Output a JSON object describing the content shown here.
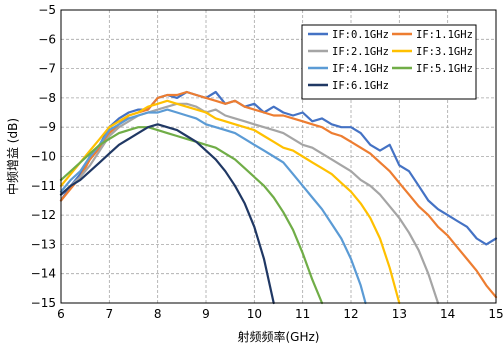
{
  "chart_data": {
    "type": "line",
    "xlabel": "射频频率(GHz)",
    "ylabel": "中频增益 (dB)",
    "xlim": [
      6,
      15
    ],
    "ylim": [
      -15,
      -5
    ],
    "xticks": [
      "6",
      "7",
      "8",
      "9",
      "10",
      "11",
      "12",
      "13",
      "14",
      "15"
    ],
    "yticks": [
      "-5",
      "-6",
      "-7",
      "-8",
      "-9",
      "-10",
      "-11",
      "-12",
      "-13",
      "-14",
      "-15"
    ],
    "grid": true,
    "legend_position": "top-right",
    "series": [
      {
        "name": "IF:0.1GHz",
        "color": "#4472C4",
        "x": [
          6,
          6.2,
          6.4,
          6.6,
          6.8,
          7,
          7.2,
          7.4,
          7.6,
          7.8,
          8,
          8.2,
          8.4,
          8.6,
          8.8,
          9,
          9.2,
          9.4,
          9.6,
          9.8,
          10,
          10.2,
          10.4,
          10.6,
          10.8,
          11,
          11.2,
          11.4,
          11.6,
          11.8,
          12,
          12.2,
          12.4,
          12.6,
          12.8,
          13,
          13.2,
          13.4,
          13.6,
          13.8,
          14,
          14.2,
          14.4,
          14.6,
          14.8,
          15
        ],
        "y": [
          -11.5,
          -11,
          -10.6,
          -10,
          -9.6,
          -9,
          -8.7,
          -8.5,
          -8.4,
          -8.4,
          -8,
          -7.9,
          -8,
          -7.8,
          -7.9,
          -8,
          -7.8,
          -8.2,
          -8.1,
          -8.3,
          -8.2,
          -8.5,
          -8.3,
          -8.5,
          -8.6,
          -8.5,
          -8.8,
          -8.7,
          -8.9,
          -9,
          -9,
          -9.2,
          -9.6,
          -9.8,
          -9.6,
          -10.3,
          -10.5,
          -11,
          -11.5,
          -11.8,
          -12,
          -12.2,
          -12.4,
          -12.8,
          -13,
          -12.8
        ]
      },
      {
        "name": "IF:1.1GHz",
        "color": "#ED7D31",
        "x": [
          6,
          6.2,
          6.4,
          6.6,
          6.8,
          7,
          7.2,
          7.4,
          7.6,
          7.8,
          8,
          8.2,
          8.4,
          8.6,
          8.8,
          9,
          9.2,
          9.4,
          9.6,
          9.8,
          10,
          10.2,
          10.4,
          10.6,
          10.8,
          11,
          11.2,
          11.4,
          11.6,
          11.8,
          12,
          12.2,
          12.4,
          12.6,
          12.8,
          13,
          13.2,
          13.4,
          13.6,
          13.8,
          14,
          14.2,
          14.4,
          14.6,
          14.8,
          15
        ],
        "y": [
          -11.5,
          -11.1,
          -10.7,
          -10.1,
          -9.7,
          -9.2,
          -8.9,
          -8.6,
          -8.5,
          -8.4,
          -8,
          -7.9,
          -7.9,
          -7.8,
          -7.9,
          -8,
          -8.1,
          -8.2,
          -8.1,
          -8.3,
          -8.4,
          -8.5,
          -8.6,
          -8.6,
          -8.7,
          -8.8,
          -8.9,
          -9,
          -9.2,
          -9.3,
          -9.5,
          -9.7,
          -9.9,
          -10.2,
          -10.5,
          -10.9,
          -11.3,
          -11.7,
          -12,
          -12.4,
          -12.7,
          -13.1,
          -13.5,
          -13.9,
          -14.4,
          -14.8
        ]
      },
      {
        "name": "IF:2.1GHz",
        "color": "#A5A5A5",
        "x": [
          6,
          6.2,
          6.4,
          6.6,
          6.8,
          7,
          7.2,
          7.4,
          7.6,
          7.8,
          8,
          8.2,
          8.4,
          8.6,
          8.8,
          9,
          9.2,
          9.4,
          9.6,
          9.8,
          10,
          10.2,
          10.4,
          10.6,
          10.8,
          11,
          11.2,
          11.4,
          11.6,
          11.8,
          12,
          12.2,
          12.4,
          12.6,
          12.8,
          13,
          13.2,
          13.4,
          13.6,
          13.8
        ],
        "y": [
          -11.3,
          -11,
          -10.7,
          -10.3,
          -9.8,
          -9.3,
          -9,
          -8.8,
          -8.6,
          -8.5,
          -8.4,
          -8.3,
          -8.2,
          -8.2,
          -8.3,
          -8.5,
          -8.4,
          -8.6,
          -8.7,
          -8.8,
          -8.9,
          -9,
          -9.1,
          -9.2,
          -9.4,
          -9.6,
          -9.7,
          -9.9,
          -10.1,
          -10.3,
          -10.5,
          -10.8,
          -11,
          -11.3,
          -11.7,
          -12.1,
          -12.6,
          -13.2,
          -14,
          -15
        ]
      },
      {
        "name": "IF:3.1GHz",
        "color": "#FFC000",
        "x": [
          6,
          6.2,
          6.4,
          6.6,
          6.8,
          7,
          7.2,
          7.4,
          7.6,
          7.8,
          8,
          8.2,
          8.4,
          8.6,
          8.8,
          9,
          9.2,
          9.4,
          9.6,
          9.8,
          10,
          10.2,
          10.4,
          10.6,
          10.8,
          11,
          11.2,
          11.4,
          11.6,
          11.8,
          12,
          12.2,
          12.4,
          12.6,
          12.8,
          13
        ],
        "y": [
          -11,
          -10.6,
          -10.2,
          -9.8,
          -9.4,
          -9,
          -8.8,
          -8.6,
          -8.5,
          -8.3,
          -8.2,
          -8.1,
          -8.2,
          -8.3,
          -8.4,
          -8.5,
          -8.7,
          -8.8,
          -8.9,
          -9,
          -9.1,
          -9.3,
          -9.5,
          -9.7,
          -9.8,
          -10,
          -10.2,
          -10.4,
          -10.6,
          -10.9,
          -11.2,
          -11.6,
          -12.1,
          -12.8,
          -13.8,
          -15
        ]
      },
      {
        "name": "IF:4.1GHz",
        "color": "#5B9BD5",
        "x": [
          6,
          6.2,
          6.4,
          6.6,
          6.8,
          7,
          7.2,
          7.4,
          7.6,
          7.8,
          8,
          8.2,
          8.4,
          8.6,
          8.8,
          9,
          9.2,
          9.4,
          9.6,
          9.8,
          10,
          10.2,
          10.4,
          10.6,
          10.8,
          11,
          11.2,
          11.4,
          11.6,
          11.8,
          12,
          12.2,
          12.3
        ],
        "y": [
          -11.2,
          -10.8,
          -10.5,
          -10,
          -9.6,
          -9.1,
          -8.9,
          -8.7,
          -8.6,
          -8.5,
          -8.5,
          -8.4,
          -8.5,
          -8.6,
          -8.7,
          -8.9,
          -9,
          -9.1,
          -9.2,
          -9.4,
          -9.6,
          -9.8,
          -10,
          -10.2,
          -10.6,
          -11,
          -11.4,
          -11.8,
          -12.3,
          -12.8,
          -13.5,
          -14.4,
          -15
        ]
      },
      {
        "name": "IF:5.1GHz",
        "color": "#70AD47",
        "x": [
          6,
          6.2,
          6.4,
          6.6,
          6.8,
          7,
          7.2,
          7.4,
          7.6,
          7.8,
          8,
          8.2,
          8.4,
          8.6,
          8.8,
          9,
          9.2,
          9.4,
          9.6,
          9.8,
          10,
          10.2,
          10.4,
          10.6,
          10.8,
          11,
          11.2,
          11.4
        ],
        "y": [
          -10.8,
          -10.5,
          -10.2,
          -9.9,
          -9.6,
          -9.4,
          -9.2,
          -9.1,
          -9,
          -9,
          -9.1,
          -9.2,
          -9.3,
          -9.4,
          -9.5,
          -9.6,
          -9.7,
          -9.9,
          -10.1,
          -10.4,
          -10.7,
          -11,
          -11.4,
          -11.9,
          -12.5,
          -13.3,
          -14.2,
          -15
        ]
      },
      {
        "name": "IF:6.1GHz",
        "color": "#203864",
        "x": [
          6,
          6.2,
          6.4,
          6.6,
          6.8,
          7,
          7.2,
          7.4,
          7.6,
          7.8,
          8,
          8.2,
          8.4,
          8.6,
          8.8,
          9,
          9.2,
          9.4,
          9.6,
          9.8,
          10,
          10.2,
          10.4
        ],
        "y": [
          -11.3,
          -11,
          -10.8,
          -10.5,
          -10.2,
          -9.9,
          -9.6,
          -9.4,
          -9.2,
          -9,
          -8.9,
          -9,
          -9.1,
          -9.3,
          -9.5,
          -9.8,
          -10.1,
          -10.5,
          -11,
          -11.6,
          -12.4,
          -13.5,
          -15
        ]
      }
    ]
  }
}
